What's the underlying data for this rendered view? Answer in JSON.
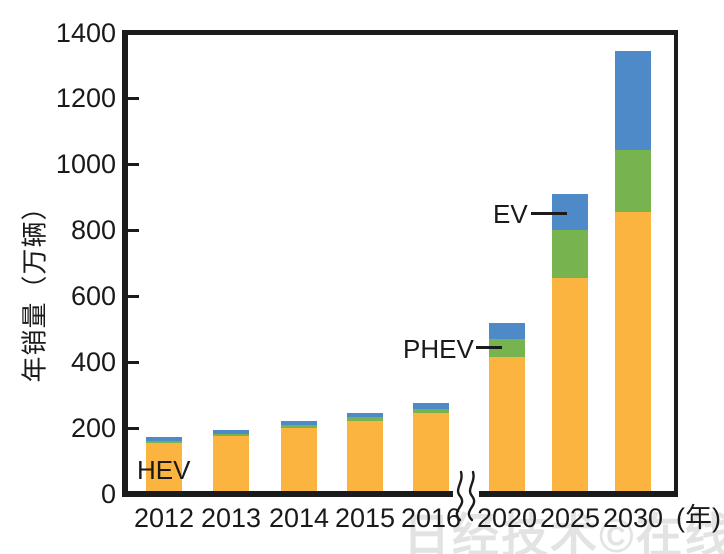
{
  "chart_data": {
    "type": "bar",
    "stacked": true,
    "title": "",
    "ylabel": "年销量（万辆）",
    "x_unit_label": "(年)",
    "ylim": [
      0,
      1400
    ],
    "yticks": [
      0,
      200,
      400,
      600,
      800,
      1000,
      1200,
      1400
    ],
    "grid": false,
    "legend_position": "inline-annotations",
    "axis_break_between": [
      "2016",
      "2020"
    ],
    "categories": [
      "2012",
      "2013",
      "2014",
      "2015",
      "2016",
      "2020",
      "2025",
      "2030"
    ],
    "series": [
      {
        "name": "HEV",
        "color": "#FBB43F",
        "values": [
          155,
          175,
          200,
          220,
          245,
          415,
          655,
          855
        ]
      },
      {
        "name": "PHEV",
        "color": "#77B34E",
        "values": [
          7,
          8,
          10,
          13,
          13,
          55,
          145,
          190
        ]
      },
      {
        "name": "EV",
        "color": "#4E8AC7",
        "values": [
          10,
          10,
          12,
          13,
          18,
          50,
          110,
          300
        ]
      }
    ],
    "annotations": [
      {
        "label": "HEV",
        "target": "2012-hev-segment"
      },
      {
        "label": "PHEV",
        "target": "2020-phev-segment"
      },
      {
        "label": "EV",
        "target": "2025-ev-segment"
      }
    ]
  },
  "colors": {
    "hev": "#FBB43F",
    "phev": "#77B34E",
    "ev": "#4E8AC7",
    "axis": "#1b1b1b",
    "watermark": "#e3e3e3"
  },
  "watermark": "日经技术©在线!"
}
